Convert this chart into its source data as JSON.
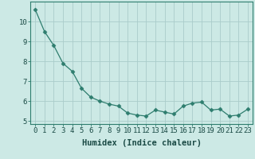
{
  "x": [
    0,
    1,
    2,
    3,
    4,
    5,
    6,
    7,
    8,
    9,
    10,
    11,
    12,
    13,
    14,
    15,
    16,
    17,
    18,
    19,
    20,
    21,
    22,
    23
  ],
  "y": [
    10.6,
    9.5,
    8.8,
    7.9,
    7.5,
    6.65,
    6.2,
    6.0,
    5.85,
    5.75,
    5.4,
    5.3,
    5.25,
    5.55,
    5.45,
    5.35,
    5.75,
    5.9,
    5.95,
    5.55,
    5.6,
    5.25,
    5.3,
    5.6
  ],
  "line_color": "#2e7d6e",
  "marker": "D",
  "marker_size": 2.5,
  "bg_color": "#cce9e5",
  "grid_color": "#aaccca",
  "xlabel": "Humidex (Indice chaleur)",
  "xlim": [
    -0.5,
    23.5
  ],
  "ylim": [
    4.85,
    11.0
  ],
  "yticks": [
    5,
    6,
    7,
    8,
    9,
    10
  ],
  "xticks": [
    0,
    1,
    2,
    3,
    4,
    5,
    6,
    7,
    8,
    9,
    10,
    11,
    12,
    13,
    14,
    15,
    16,
    17,
    18,
    19,
    20,
    21,
    22,
    23
  ],
  "tick_fontsize": 6.5,
  "xlabel_fontsize": 7.5
}
